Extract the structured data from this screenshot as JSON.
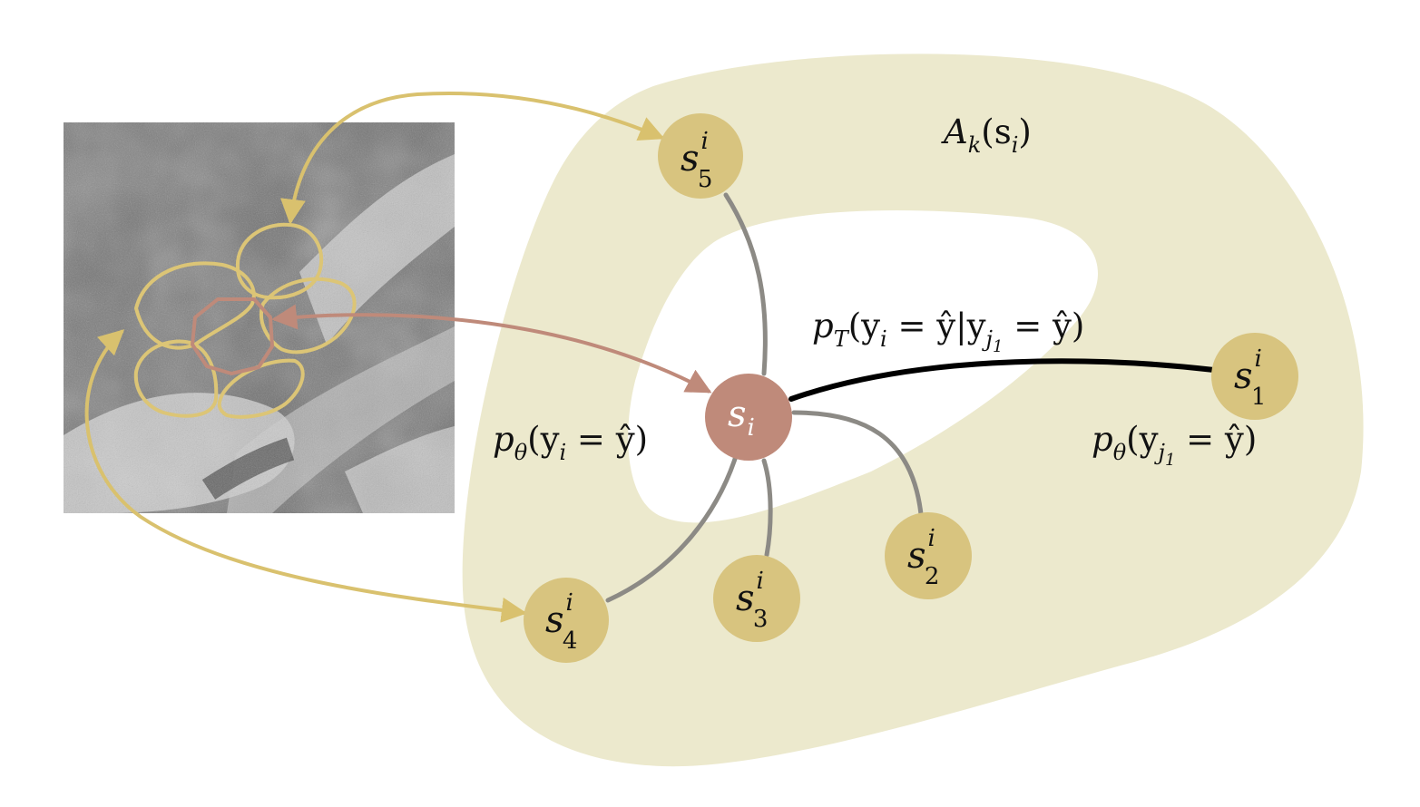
{
  "colors": {
    "neighborhood_fill": "#ece9cd",
    "neighbor_node": "#d8c47f",
    "center_node": "#bf8a7a",
    "neighbor_contour": "#dcc576",
    "center_contour": "#bf8a7a",
    "gray_edge": "#8c8a85",
    "strong_edge": "#000000"
  },
  "region": {
    "label_base": "A",
    "label_sub": "k",
    "label_paren": "(s",
    "label_paren_sub": "i",
    "label_close": ")"
  },
  "center_node": {
    "base": "s",
    "sub": "i"
  },
  "neighbors": [
    {
      "id": "5",
      "base": "s",
      "sup": "i",
      "sub": "5"
    },
    {
      "id": "1",
      "base": "s",
      "sup": "i",
      "sub": "1"
    },
    {
      "id": "2",
      "base": "s",
      "sup": "i",
      "sub": "2"
    },
    {
      "id": "3",
      "base": "s",
      "sup": "i",
      "sub": "3"
    },
    {
      "id": "4",
      "base": "s",
      "sup": "i",
      "sub": "4"
    }
  ],
  "formulas": {
    "transition": {
      "p": "p",
      "p_sub": "T",
      "body_a": "(y",
      "body_a_sub": "i",
      "body_b": " = ŷ|y",
      "body_b_sub": "j",
      "body_b_subsub": "1",
      "body_c": " = ŷ)"
    },
    "center_prob": {
      "p": "p",
      "p_sub": "θ",
      "body_a": "(y",
      "body_a_sub": "i",
      "body_b": " = ŷ)"
    },
    "neighbor_prob": {
      "p": "p",
      "p_sub": "θ",
      "body_a": "(y",
      "body_a_sub": "j",
      "body_a_subsub": "1",
      "body_b": " = ŷ)"
    }
  }
}
